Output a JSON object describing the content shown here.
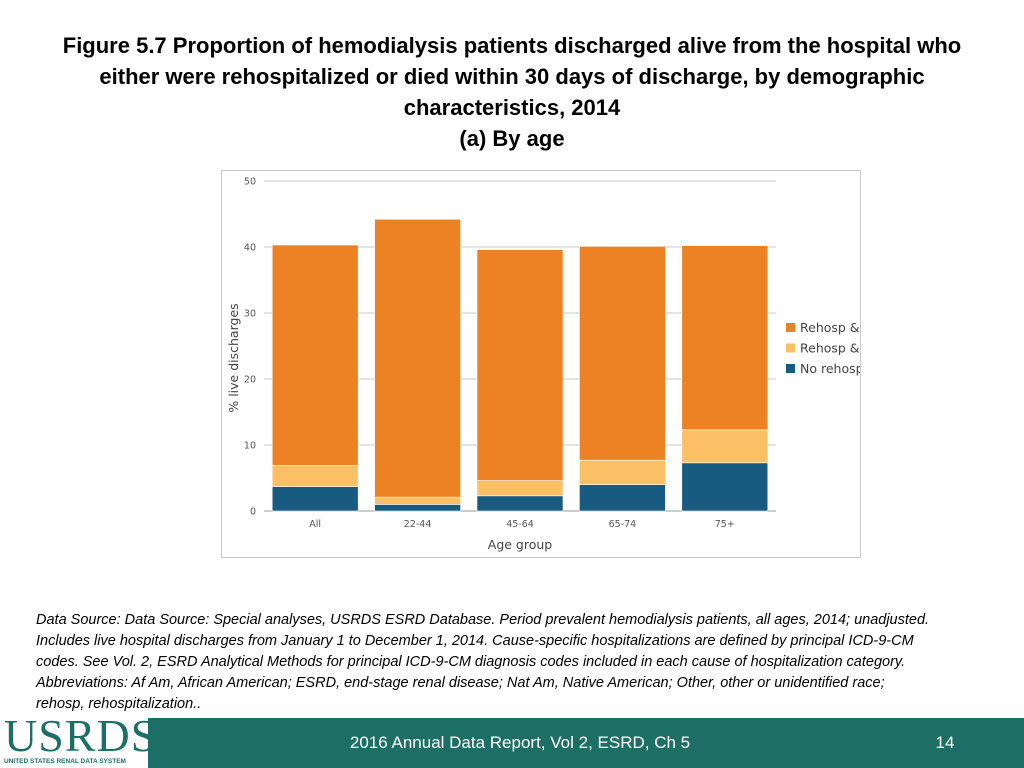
{
  "slide": {
    "title_line1": "Figure 5.7 Proportion of hemodialysis patients discharged alive from the hospital who",
    "title_line2": "either were rehospitalized or died within 30 days of discharge, by demographic",
    "title_line3": "characteristics, 2014",
    "subtitle": "(a) By age",
    "notes": [
      "Data Source: Data Source: Special analyses, USRDS ESRD Database. Period prevalent hemodialysis patients, all ages, 2014; unadjusted.",
      "Includes live hospital discharges from January 1 to December 1, 2014. Cause-specific hospitalizations are defined by principal ICD-9-CM",
      "codes. See Vol. 2, ESRD Analytical Methods for principal ICD-9-CM diagnosis codes included in each cause of hospitalization category.",
      "Abbreviations: Af Am, African American; ESRD, end-stage renal disease; Nat Am, Native American; Other, other or unidentified race;",
      "rehosp, rehospitalization.."
    ],
    "footer_text": "2016 Annual Data Report, Vol 2, ESRD, Ch 5",
    "page_number": "14",
    "logo_text": "USRDS",
    "logo_subtext": "UNITED STATES RENAL DATA SYSTEM"
  },
  "colors": {
    "rehosp_alive": "#ec8224",
    "rehosp_died": "#fbbf66",
    "no_rehosp_died": "#185a80",
    "footer": "#1d6f66",
    "gridline": "#c9c9c9"
  },
  "chart_data": {
    "type": "bar",
    "stacked": true,
    "title": "",
    "xlabel": "Age group",
    "ylabel": "% live discharges",
    "ylim": [
      0,
      50
    ],
    "yticks": [
      0,
      10,
      20,
      30,
      40,
      50
    ],
    "grid": true,
    "legend_position": "right",
    "categories": [
      "All",
      "22-44",
      "45-64",
      "65-74",
      "75+"
    ],
    "series": [
      {
        "name": "No rehosp & died",
        "values": [
          3.7,
          1.0,
          2.3,
          4.0,
          7.3
        ]
      },
      {
        "name": "Rehosp & died",
        "values": [
          3.2,
          1.1,
          2.3,
          3.7,
          5.0
        ]
      },
      {
        "name": "Rehosp & alive",
        "values": [
          33.4,
          42.1,
          35.0,
          32.4,
          27.9
        ]
      }
    ]
  }
}
